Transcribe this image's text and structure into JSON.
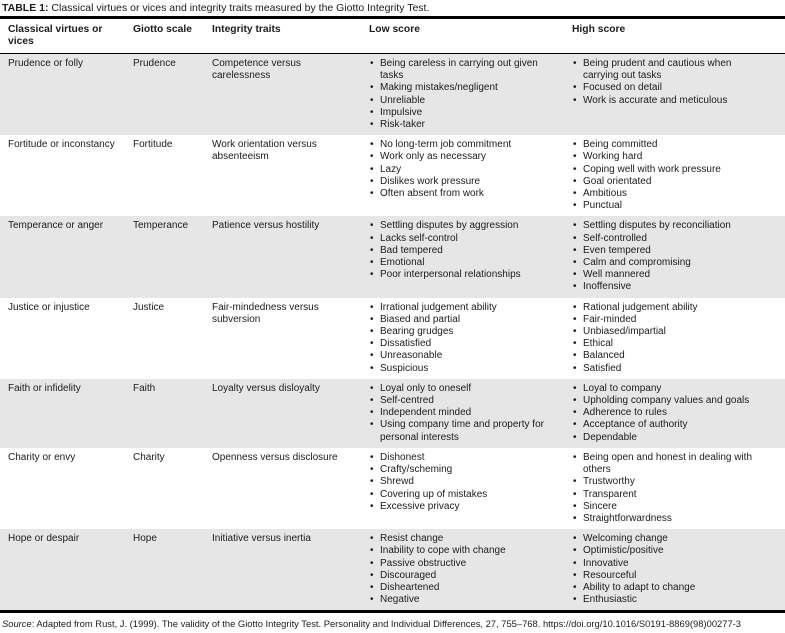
{
  "title": {
    "label": "TABLE 1:",
    "text": " Classical virtues or vices and integrity traits measured by the Giotto Integrity Test."
  },
  "columns": [
    "Classical virtues or vices",
    "Giotto scale",
    "Integrity traits",
    "Low score",
    "High score"
  ],
  "rows": [
    {
      "virtue": "Prudence or folly",
      "scale": "Prudence",
      "trait": "Competence versus carelessness",
      "low": [
        "Being careless in carrying out given tasks",
        "Making mistakes/negligent",
        "Unreliable",
        "Impulsive",
        "Risk-taker"
      ],
      "high": [
        "Being prudent and cautious when carrying out tasks",
        "Focused on detail",
        "Work is accurate and meticulous"
      ]
    },
    {
      "virtue": "Fortitude or inconstancy",
      "scale": "Fortitude",
      "trait": "Work orientation versus absenteeism",
      "low": [
        "No long-term job commitment",
        "Work only as necessary",
        "Lazy",
        "Dislikes work pressure",
        "Often absent from work"
      ],
      "high": [
        "Being committed",
        "Working hard",
        "Coping well with work pressure",
        "Goal orientated",
        "Ambitious",
        "Punctual"
      ]
    },
    {
      "virtue": "Temperance or anger",
      "scale": "Temperance",
      "trait": "Patience versus hostility",
      "low": [
        "Settling disputes by aggression",
        "Lacks self-control",
        "Bad tempered",
        "Emotional",
        "Poor interpersonal relationships"
      ],
      "high": [
        "Settling disputes by reconciliation",
        "Self-controlled",
        "Even tempered",
        "Calm and compromising",
        "Well mannered",
        "Inoffensive"
      ]
    },
    {
      "virtue": "Justice or injustice",
      "scale": "Justice",
      "trait": "Fair-mindedness versus subversion",
      "low": [
        "Irrational judgement ability",
        "Biased and partial",
        "Bearing grudges",
        "Dissatisfied",
        "Unreasonable",
        "Suspicious"
      ],
      "high": [
        "Rational judgement ability",
        "Fair-minded",
        "Unbiased/impartial",
        "Ethical",
        "Balanced",
        "Satisfied"
      ]
    },
    {
      "virtue": "Faith or infidelity",
      "scale": "Faith",
      "trait": "Loyalty versus disloyalty",
      "low": [
        "Loyal only to oneself",
        "Self-centred",
        "Independent minded",
        "Using company time and property for personal interests"
      ],
      "high": [
        "Loyal to company",
        "Upholding company values and goals",
        "Adherence to rules",
        "Acceptance of authority",
        "Dependable"
      ]
    },
    {
      "virtue": "Charity or envy",
      "scale": "Charity",
      "trait": "Openness versus disclosure",
      "low": [
        "Dishonest",
        "Crafty/scheming",
        "Shrewd",
        "Covering up of mistakes",
        "Excessive privacy"
      ],
      "high": [
        "Being open and honest in dealing with others",
        "Trustworthy",
        "Transparent",
        "Sincere",
        "Straightforwardness"
      ]
    },
    {
      "virtue": "Hope or despair",
      "scale": "Hope",
      "trait": "Initiative versus inertia",
      "low": [
        "Resist change",
        "Inability to cope with change",
        "Passive obstructive",
        "Discouraged",
        "Disheartened",
        "Negative"
      ],
      "high": [
        "Welcoming change",
        "Optimistic/positive",
        "Innovative",
        "Resourceful",
        "Ability to adapt to change",
        "Enthusiastic"
      ]
    }
  ],
  "source": {
    "label": "Source",
    "text": ": Adapted from Rust, J. (1999). The validity of the Giotto Integrity Test. Personality and Individual Differences, 27, 755–768. https://doi.org/10.1016/S0191-8869(98)00277-3"
  }
}
